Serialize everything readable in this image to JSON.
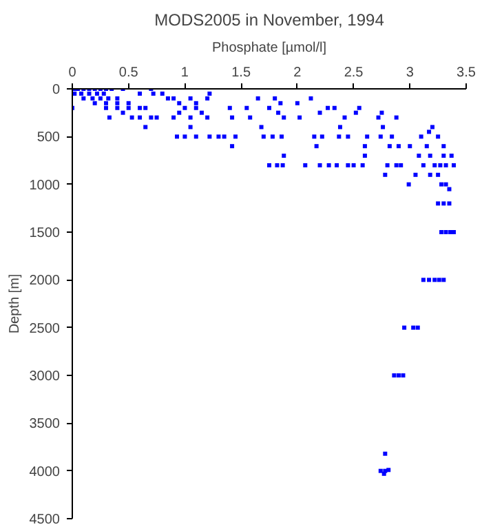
{
  "chart_data": {
    "type": "scatter",
    "title": "MODS2005 in November, 1994",
    "xlabel": "Phosphate [µmol/l]",
    "ylabel": "Depth [m]",
    "xlim": [
      0,
      3.5
    ],
    "xticks": [
      0,
      0.5,
      1,
      1.5,
      2,
      2.5,
      3,
      3.5
    ],
    "ylim": [
      4500,
      0
    ],
    "yticks": [
      0,
      500,
      1000,
      1500,
      2000,
      2500,
      3000,
      3500,
      4000,
      4500
    ],
    "grid": false,
    "marker": "square",
    "series": [
      {
        "color": "#0000ff",
        "x": [
          0.02,
          0.05,
          0.1,
          0.15,
          0.2,
          0.25,
          0.3,
          0.02,
          0.08,
          0.15,
          0.22,
          0.28,
          0.1,
          0.18,
          0.25,
          0.32,
          0.4,
          0.2,
          0.3,
          0.4,
          0.5,
          0.0,
          0.3,
          0.4,
          0.5,
          0.6,
          0.65,
          0.35,
          0.45,
          0.7,
          0.72,
          0.6,
          0.8,
          0.85,
          0.9,
          0.95,
          1.05,
          1.1,
          1.2,
          1.22,
          1.0,
          1.1,
          1.15,
          0.33,
          0.45,
          0.53,
          0.6,
          0.65,
          0.7,
          0.75,
          0.9,
          0.95,
          1.05,
          1.2,
          1.05,
          0.93,
          1.0,
          1.1,
          1.22,
          1.3,
          1.35,
          1.42,
          1.45,
          1.4,
          1.42,
          1.55,
          1.58,
          1.65,
          1.68,
          1.7,
          1.75,
          1.8,
          1.85,
          1.83,
          1.88,
          1.86,
          1.78,
          1.75,
          1.82,
          1.87,
          1.88,
          2.0,
          2.02,
          2.07,
          2.12,
          2.15,
          2.17,
          2.2,
          2.22,
          2.27,
          2.2,
          2.28,
          2.35,
          2.33,
          2.38,
          2.37,
          2.45,
          2.42,
          2.45,
          2.5,
          2.52,
          2.55,
          2.58,
          2.6,
          2.62,
          2.6,
          2.72,
          2.75,
          2.76,
          2.74,
          2.78,
          2.8,
          2.82,
          2.84,
          2.88,
          2.88,
          2.9,
          2.92,
          2.99,
          3.0,
          3.05,
          3.08,
          3.1,
          3.12,
          3.15,
          3.17,
          3.2,
          3.18,
          3.22,
          3.18,
          3.25,
          3.25,
          3.27,
          3.3,
          3.32,
          3.28,
          3.32,
          3.35,
          3.37,
          3.39,
          3.3,
          3.25,
          3.3,
          3.35,
          3.28,
          3.32,
          3.36,
          3.39,
          3.12,
          3.17,
          3.22,
          3.26,
          3.3,
          2.95,
          3.03,
          3.07,
          2.86,
          2.9,
          2.94,
          2.78,
          2.74,
          2.78,
          2.81,
          2.77
        ],
        "values": [
          0,
          0,
          0,
          0,
          0,
          0,
          0,
          50,
          50,
          50,
          50,
          50,
          100,
          100,
          100,
          100,
          100,
          150,
          150,
          150,
          150,
          200,
          200,
          200,
          200,
          200,
          200,
          0,
          0,
          0,
          50,
          50,
          50,
          100,
          100,
          150,
          100,
          150,
          100,
          50,
          200,
          200,
          250,
          300,
          250,
          300,
          300,
          400,
          300,
          300,
          300,
          250,
          300,
          300,
          400,
          500,
          500,
          500,
          500,
          500,
          500,
          600,
          500,
          200,
          300,
          200,
          300,
          100,
          400,
          500,
          200,
          100,
          150,
          250,
          300,
          500,
          500,
          800,
          800,
          800,
          700,
          150,
          300,
          800,
          100,
          500,
          600,
          250,
          500,
          200,
          800,
          800,
          800,
          200,
          400,
          500,
          500,
          300,
          800,
          800,
          250,
          200,
          800,
          600,
          500,
          700,
          300,
          250,
          400,
          500,
          900,
          800,
          600,
          500,
          300,
          800,
          600,
          800,
          1000,
          600,
          900,
          700,
          500,
          800,
          600,
          450,
          400,
          700,
          800,
          900,
          900,
          500,
          800,
          700,
          800,
          1000,
          1000,
          1050,
          700,
          800,
          600,
          1200,
          1200,
          1200,
          1500,
          1500,
          1500,
          1500,
          2000,
          2000,
          2000,
          2000,
          2000,
          2500,
          2500,
          2500,
          3000,
          3000,
          3000,
          3820,
          4000,
          4000,
          3990,
          4030
        ]
      }
    ]
  }
}
